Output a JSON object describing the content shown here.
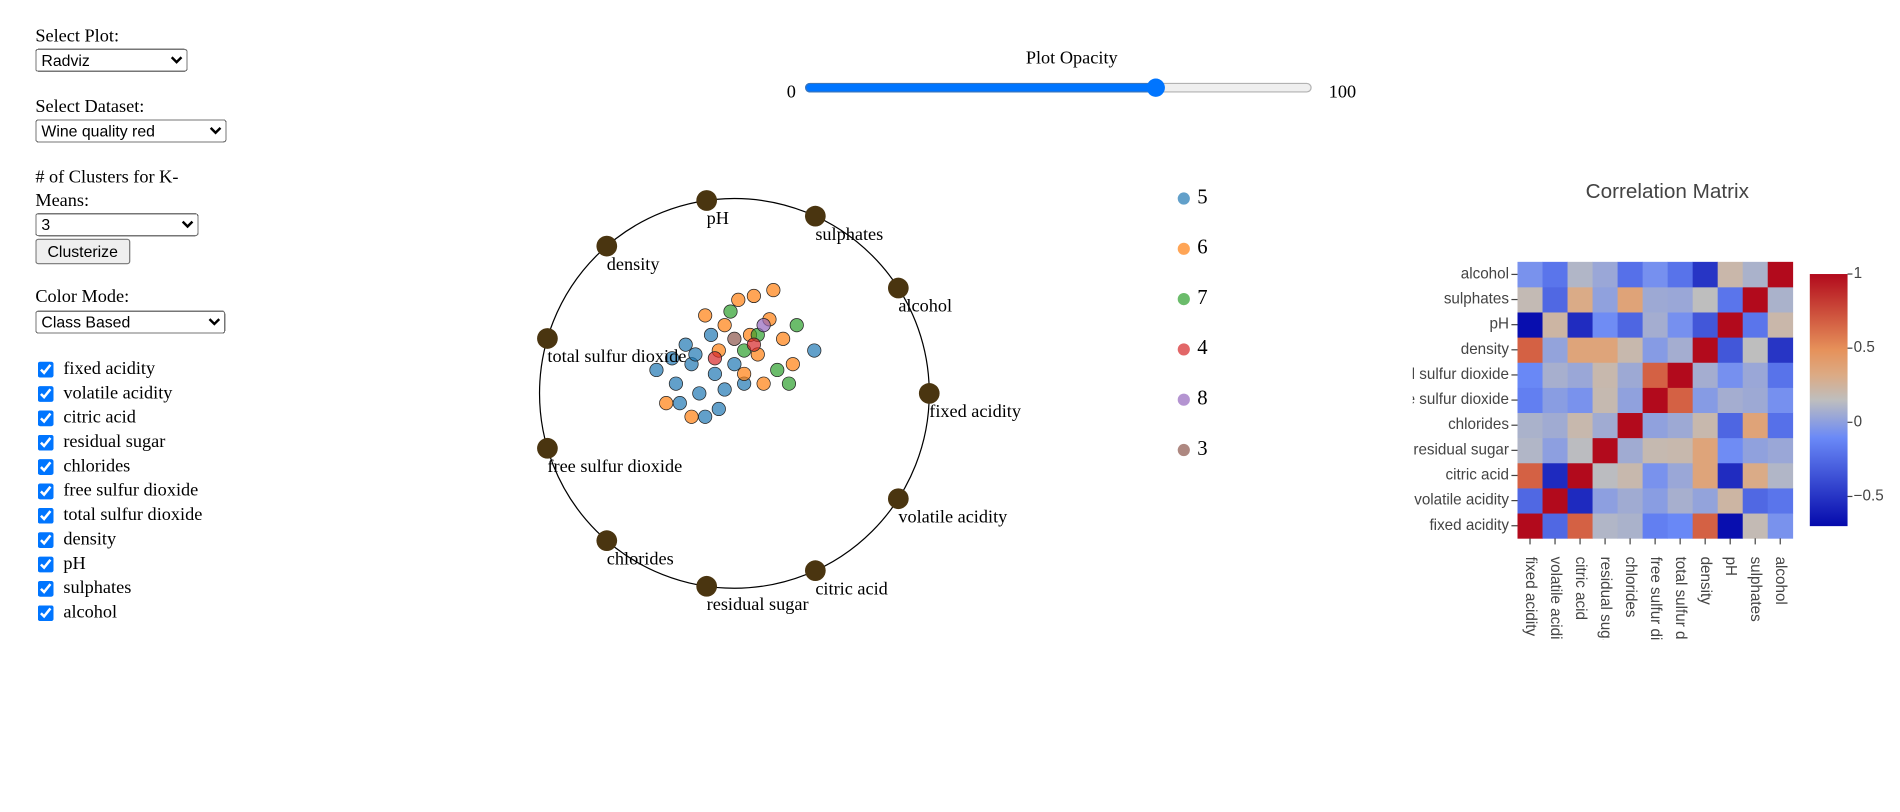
{
  "controls": {
    "plot_label": "Select Plot:",
    "plot_value": "Radviz",
    "dataset_label": "Select Dataset:",
    "dataset_value": "Wine quality red",
    "clusters_label": "# of Clusters for K-Means:",
    "clusters_value": "3",
    "cluster_button": "Clusterize",
    "color_label": "Color Mode:",
    "color_value": "Class Based",
    "checked": [
      true,
      true,
      true,
      true,
      true,
      true,
      true,
      true,
      true,
      true,
      true
    ]
  },
  "slider": {
    "label": "Plot Opacity",
    "min": 0,
    "max": 100,
    "value": 70
  },
  "chart_data": [
    {
      "type": "radviz",
      "features": [
        "fixed acidity",
        "volatile acidity",
        "citric acid",
        "residual sugar",
        "chlorides",
        "free sulfur dioxide",
        "total sulfur dioxide",
        "density",
        "pH",
        "sulphates",
        "alcohol"
      ],
      "anchor_color": "#4a3510",
      "series": [
        {
          "name": "5",
          "color": "#1f77b4",
          "x": [
            -0.4,
            -0.3,
            -0.28,
            -0.22,
            -0.18,
            -0.15,
            -0.1,
            -0.05,
            -0.25,
            -0.12,
            0.0,
            -0.2,
            -0.08,
            -0.32,
            0.05,
            0.41
          ],
          "y": [
            0.12,
            0.05,
            -0.05,
            0.15,
            0.0,
            -0.12,
            0.1,
            0.02,
            0.25,
            0.3,
            0.15,
            0.2,
            -0.08,
            0.18,
            0.05,
            0.22
          ]
        },
        {
          "name": "6",
          "color": "#ff7f0e",
          "x": [
            -0.35,
            -0.15,
            -0.05,
            0.02,
            0.08,
            0.12,
            0.18,
            0.25,
            0.3,
            0.05,
            -0.08,
            0.15,
            0.2,
            0.1,
            -0.22
          ],
          "y": [
            -0.05,
            0.4,
            0.35,
            0.48,
            0.3,
            0.2,
            0.38,
            0.28,
            0.15,
            0.1,
            0.22,
            0.05,
            0.53,
            0.5,
            -0.12
          ]
        },
        {
          "name": "7",
          "color": "#2ca02c",
          "x": [
            0.32,
            0.22,
            0.05,
            -0.02,
            0.28,
            0.12
          ],
          "y": [
            0.35,
            0.12,
            0.22,
            0.42,
            0.05,
            0.3
          ]
        },
        {
          "name": "4",
          "color": "#d62728",
          "x": [
            0.1,
            -0.1
          ],
          "y": [
            0.25,
            0.18
          ]
        },
        {
          "name": "8",
          "color": "#9467bd",
          "x": [
            0.15
          ],
          "y": [
            0.35
          ]
        },
        {
          "name": "3",
          "color": "#8c564b",
          "x": [
            0.0
          ],
          "y": [
            0.28
          ]
        }
      ]
    },
    {
      "type": "heatmap",
      "title": "Correlation Matrix",
      "x": [
        "fixed acidity",
        "volatile acidity",
        "citric acid",
        "residual sugar",
        "chlorides",
        "free sulfur dioxide",
        "total sulfur dioxide",
        "density",
        "pH",
        "sulphates",
        "alcohol"
      ],
      "y": [
        "fixed acidity",
        "volatile acidity",
        "citric acid",
        "residual sugar",
        "chlorides",
        "free sulfur dioxide",
        "total sulfur dioxide",
        "density",
        "pH",
        "sulphates",
        "alcohol"
      ],
      "z": [
        [
          1,
          -0.26,
          0.67,
          0.11,
          0.09,
          -0.15,
          -0.11,
          0.67,
          -0.68,
          0.18,
          -0.06
        ],
        [
          -0.26,
          1,
          -0.55,
          0.0,
          0.06,
          -0.01,
          0.08,
          0.02,
          0.23,
          -0.26,
          -0.2
        ],
        [
          0.67,
          -0.55,
          1,
          0.14,
          0.2,
          -0.06,
          0.04,
          0.36,
          -0.54,
          0.31,
          0.11
        ],
        [
          0.11,
          0.0,
          0.14,
          1,
          0.06,
          0.19,
          0.2,
          0.36,
          -0.09,
          0.01,
          0.04
        ],
        [
          0.09,
          0.06,
          0.2,
          0.06,
          1,
          0.01,
          0.05,
          0.2,
          -0.27,
          0.37,
          -0.22
        ],
        [
          -0.15,
          -0.01,
          -0.06,
          0.19,
          0.01,
          1,
          0.67,
          -0.02,
          0.07,
          0.05,
          -0.07
        ],
        [
          -0.11,
          0.08,
          0.04,
          0.2,
          0.05,
          0.67,
          1,
          0.07,
          -0.07,
          0.04,
          -0.21
        ],
        [
          0.67,
          0.02,
          0.36,
          0.36,
          0.2,
          -0.02,
          0.07,
          1,
          -0.34,
          0.15,
          -0.5
        ],
        [
          -0.68,
          0.23,
          -0.54,
          -0.09,
          -0.27,
          0.07,
          -0.07,
          -0.34,
          1,
          -0.2,
          0.21
        ],
        [
          0.18,
          -0.26,
          0.31,
          0.01,
          0.37,
          0.05,
          0.04,
          0.15,
          -0.2,
          1,
          0.09
        ],
        [
          -0.06,
          -0.2,
          0.11,
          0.04,
          -0.22,
          -0.07,
          -0.21,
          -0.5,
          0.21,
          0.09,
          1
        ]
      ],
      "zlim": [
        -0.7,
        1
      ],
      "colorscale": [
        [
          0,
          "#050aac"
        ],
        [
          0.35,
          "#6a89f7"
        ],
        [
          0.5,
          "#bebebe"
        ],
        [
          0.6,
          "#dcaa84"
        ],
        [
          0.7,
          "#e6915a"
        ],
        [
          1,
          "#b20a1c"
        ]
      ],
      "colorbar_ticks": [
        1,
        0.5,
        0,
        {
          "value": -0.5,
          "label": "−0.5"
        }
      ]
    }
  ]
}
